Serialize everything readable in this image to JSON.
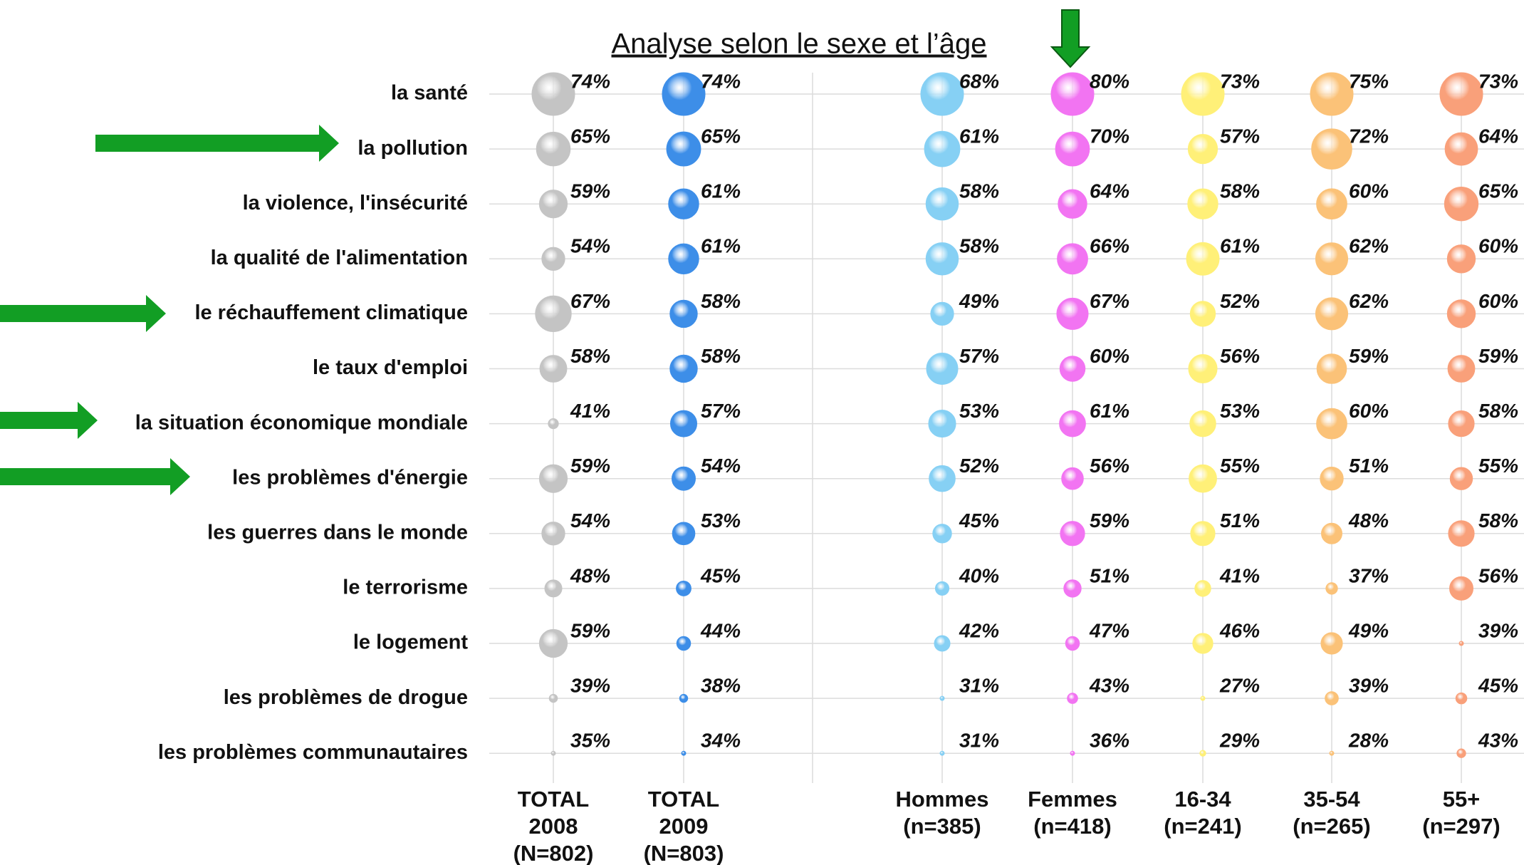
{
  "chart_data": {
    "type": "bubble",
    "title": "Analyse selon le sexe et l’âge",
    "categories": [
      "la santé",
      "la pollution",
      "la violence, l'insécurité",
      "la qualité de l'alimentation",
      "le réchauffement climatique",
      "le taux d'emploi",
      "la situation économique mondiale",
      "les problèmes d'énergie",
      "les guerres dans le monde",
      "le terrorisme",
      "le logement",
      "les problèmes de drogue",
      "les problèmes communautaires"
    ],
    "series": [
      {
        "name": "TOTAL\n2008\n(N=802)",
        "color": "#c4c4c4",
        "values": [
          74,
          65,
          59,
          54,
          67,
          58,
          41,
          59,
          54,
          48,
          59,
          39,
          35
        ],
        "value_labels": [
          "74%",
          "65%",
          "59%",
          "54%",
          "67%",
          "58%",
          "41%",
          "59%",
          "54%",
          "48%",
          "59%",
          "39%",
          "35%"
        ]
      },
      {
        "name": "TOTAL\n2009\n(N=803)",
        "color": "#3d8ee8",
        "values": [
          74,
          65,
          61,
          61,
          58,
          58,
          57,
          54,
          53,
          45,
          44,
          38,
          34
        ],
        "value_labels": [
          "74%",
          "65%",
          "61%",
          "61%",
          "58%",
          "58%",
          "57%",
          "54%",
          "53%",
          "45%",
          "44%",
          "38%",
          "34%"
        ]
      },
      {
        "name": "Hommes\n(n=385)",
        "color": "#86d0f4",
        "values": [
          68,
          61,
          58,
          58,
          49,
          57,
          53,
          52,
          45,
          40,
          42,
          31,
          31
        ],
        "value_labels": [
          "68%",
          "61%",
          "58%",
          "58%",
          "49%",
          "57%",
          "53%",
          "52%",
          "45%",
          "40%",
          "42%",
          "31%",
          "31%"
        ]
      },
      {
        "name": "Femmes\n(n=418)",
        "color": "#f274f2",
        "values": [
          80,
          70,
          64,
          66,
          67,
          60,
          61,
          56,
          59,
          51,
          47,
          43,
          36
        ],
        "value_labels": [
          "80%",
          "70%",
          "64%",
          "66%",
          "67%",
          "60%",
          "61%",
          "56%",
          "59%",
          "51%",
          "47%",
          "43%",
          "36%"
        ]
      },
      {
        "name": "16-34\n(n=241)",
        "color": "#fff078",
        "values": [
          73,
          57,
          58,
          61,
          52,
          56,
          53,
          55,
          51,
          41,
          46,
          27,
          29
        ],
        "value_labels": [
          "73%",
          "57%",
          "58%",
          "61%",
          "52%",
          "56%",
          "53%",
          "55%",
          "51%",
          "41%",
          "46%",
          "27%",
          "29%"
        ]
      },
      {
        "name": "35-54\n(n=265)",
        "color": "#fbc278",
        "values": [
          75,
          72,
          60,
          62,
          62,
          59,
          60,
          51,
          48,
          37,
          49,
          39,
          28
        ],
        "value_labels": [
          "75%",
          "72%",
          "60%",
          "62%",
          "62%",
          "59%",
          "60%",
          "51%",
          "48%",
          "37%",
          "49%",
          "39%",
          "28%"
        ]
      },
      {
        "name": "55+\n(n=297)",
        "color": "#f9a07a",
        "values": [
          73,
          64,
          65,
          60,
          60,
          59,
          58,
          55,
          58,
          56,
          39,
          45,
          43
        ],
        "value_labels": [
          "73%",
          "64%",
          "65%",
          "60%",
          "60%",
          "59%",
          "58%",
          "55%",
          "58%",
          "56%",
          "39%",
          "45%",
          "43%"
        ]
      }
    ]
  }
}
